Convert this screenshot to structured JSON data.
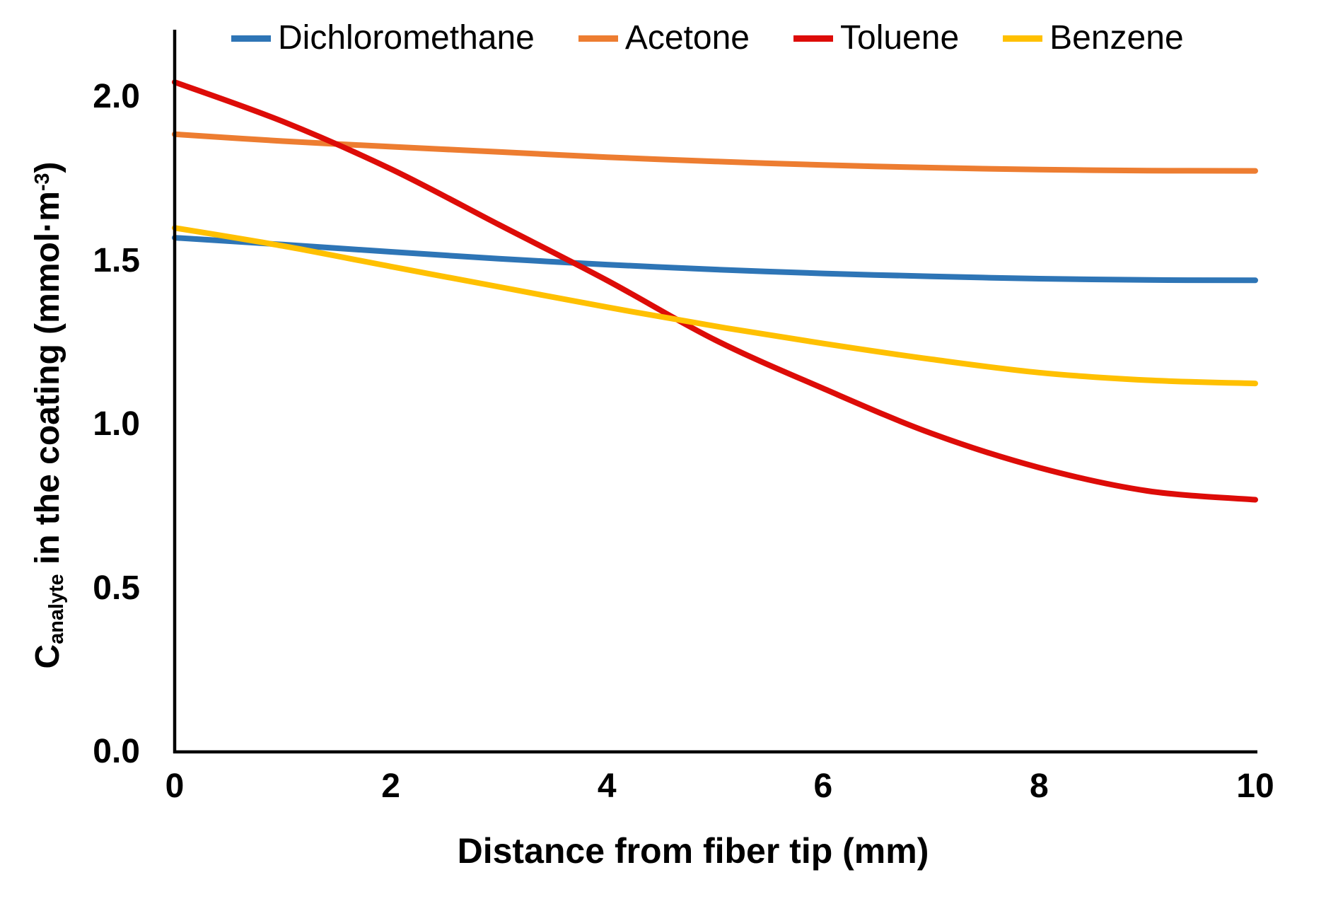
{
  "figure": {
    "background": "#ffffff",
    "text_color": "#000000",
    "axis_color": "#000000"
  },
  "chart_data": {
    "type": "line",
    "title": "",
    "xlabel": "Distance from fiber tip (mm)",
    "ylabel": "C_analyte in the coating (mmol·m^-3)",
    "ylabel_parts": {
      "base1": "C",
      "sub": "analyte",
      "base2": " in the coating (mmol·m",
      "sup": "-3",
      "base3": ")"
    },
    "x": [
      0,
      1,
      2,
      3,
      4,
      5,
      6,
      7,
      8,
      9,
      10
    ],
    "series": [
      {
        "name": "Dichloromethane",
        "color": "#2E75B6",
        "values": [
          1.57,
          1.549,
          1.527,
          1.506,
          1.488,
          1.473,
          1.461,
          1.452,
          1.445,
          1.441,
          1.44
        ]
      },
      {
        "name": "Acetone",
        "color": "#ED7D31",
        "values": [
          1.886,
          1.865,
          1.848,
          1.832,
          1.816,
          1.803,
          1.792,
          1.784,
          1.778,
          1.775,
          1.774
        ]
      },
      {
        "name": "Toluene",
        "color": "#DD0C08",
        "values": [
          2.045,
          1.925,
          1.78,
          1.61,
          1.44,
          1.258,
          1.11,
          0.973,
          0.868,
          0.797,
          0.77
        ]
      },
      {
        "name": "Benzene",
        "color": "#FFC000",
        "values": [
          1.6,
          1.545,
          1.482,
          1.42,
          1.358,
          1.3,
          1.247,
          1.199,
          1.158,
          1.135,
          1.125
        ]
      }
    ],
    "x_ticks": [
      "0",
      "2",
      "4",
      "6",
      "8",
      "10"
    ],
    "x_tick_values": [
      0,
      2,
      4,
      6,
      8,
      10
    ],
    "y_ticks": [
      "0.0",
      "0.5",
      "1.0",
      "1.5",
      "2.0"
    ],
    "y_tick_values": [
      0,
      0.5,
      1.0,
      1.5,
      2.0
    ],
    "xlim": [
      0,
      10
    ],
    "ylim": [
      0,
      2.2
    ],
    "grid": false,
    "legend_position": "top"
  }
}
